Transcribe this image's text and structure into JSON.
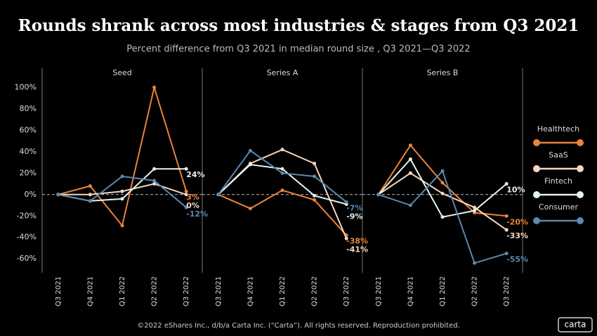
{
  "title": "Rounds shrank across most industries & stages from Q3 2021",
  "subtitle": "Percent difference from Q3 2021 in median round size , Q3 2021—Q3 2022",
  "footer": "©2022 eShares Inc., d/b/a Carta Inc. (“Carta”). All rights reserved. Reproduction prohibited.",
  "logo": "carta",
  "chart_data": [
    {
      "type": "line",
      "title": "Seed",
      "categories": [
        "Q3 2021",
        "Q4 2021",
        "Q1 2022",
        "Q2 2022",
        "Q3 2022"
      ],
      "ylim": [
        -73,
        118
      ],
      "yticks": [
        {
          "value": -60,
          "label": "-60%"
        },
        {
          "value": -40,
          "label": "-40%"
        },
        {
          "value": -20,
          "label": "-20%"
        },
        {
          "value": 0,
          "label": "0%"
        },
        {
          "value": 20,
          "label": "20%"
        },
        {
          "value": 40,
          "label": "40%"
        },
        {
          "value": 60,
          "label": "60%"
        },
        {
          "value": 80,
          "label": "80%"
        },
        {
          "value": 100,
          "label": "100%"
        }
      ],
      "series": [
        {
          "name": "Healthtech",
          "color": "#e8833a",
          "values": [
            0,
            8,
            -29,
            100,
            3
          ],
          "value_labels": [
            null,
            null,
            null,
            null,
            "3%"
          ]
        },
        {
          "name": "SaaS",
          "color": "#f7d6c1",
          "values": [
            0,
            0,
            3,
            10,
            0
          ],
          "value_labels": [
            null,
            null,
            null,
            null,
            "0%"
          ]
        },
        {
          "name": "Fintech",
          "color": "#e4f3ec",
          "values": [
            0,
            -6,
            -4,
            24,
            24
          ],
          "value_labels": [
            null,
            null,
            null,
            null,
            "24%"
          ]
        },
        {
          "name": "Consumer",
          "color": "#5b88ae",
          "values": [
            0,
            -6,
            17,
            13,
            -12
          ],
          "value_labels": [
            null,
            null,
            null,
            null,
            "-12%"
          ]
        }
      ]
    },
    {
      "type": "line",
      "title": "Series A",
      "categories": [
        "Q3 2021",
        "Q4 2021",
        "Q1 2022",
        "Q2 2022",
        "Q3 2022"
      ],
      "ylim": [
        -73,
        118
      ],
      "series": [
        {
          "name": "Healthtech",
          "color": "#e8833a",
          "values": [
            0,
            -13,
            4,
            -5,
            -38
          ],
          "value_labels": [
            null,
            null,
            null,
            null,
            "-38%"
          ]
        },
        {
          "name": "SaaS",
          "color": "#f7d6c1",
          "values": [
            0,
            29,
            42,
            29,
            -41
          ],
          "value_labels": [
            null,
            null,
            null,
            null,
            "-41%"
          ]
        },
        {
          "name": "Fintech",
          "color": "#e4f3ec",
          "values": [
            0,
            28,
            24,
            -1,
            -9
          ],
          "value_labels": [
            null,
            null,
            null,
            null,
            "-9%"
          ]
        },
        {
          "name": "Consumer",
          "color": "#5b88ae",
          "values": [
            0,
            41,
            20,
            17,
            -7
          ],
          "value_labels": [
            null,
            null,
            null,
            null,
            "-7%"
          ]
        }
      ]
    },
    {
      "type": "line",
      "title": "Series B",
      "categories": [
        "Q3 2021",
        "Q4 2021",
        "Q1 2022",
        "Q2 2022",
        "Q3 2022"
      ],
      "ylim": [
        -73,
        118
      ],
      "series": [
        {
          "name": "Healthtech",
          "color": "#e8833a",
          "values": [
            0,
            46,
            11,
            -17,
            -20
          ],
          "value_labels": [
            null,
            null,
            null,
            null,
            "-20%"
          ]
        },
        {
          "name": "SaaS",
          "color": "#f7d6c1",
          "values": [
            0,
            20,
            1,
            -12,
            -33
          ],
          "value_labels": [
            null,
            null,
            null,
            null,
            "-33%"
          ]
        },
        {
          "name": "Fintech",
          "color": "#e4f3ec",
          "values": [
            0,
            33,
            -21,
            -15,
            10
          ],
          "value_labels": [
            null,
            null,
            null,
            null,
            "10%"
          ]
        },
        {
          "name": "Consumer",
          "color": "#5b88ae",
          "values": [
            0,
            -10,
            22,
            -64,
            -55
          ],
          "value_labels": [
            null,
            null,
            null,
            null,
            "-55%"
          ]
        }
      ]
    }
  ]
}
